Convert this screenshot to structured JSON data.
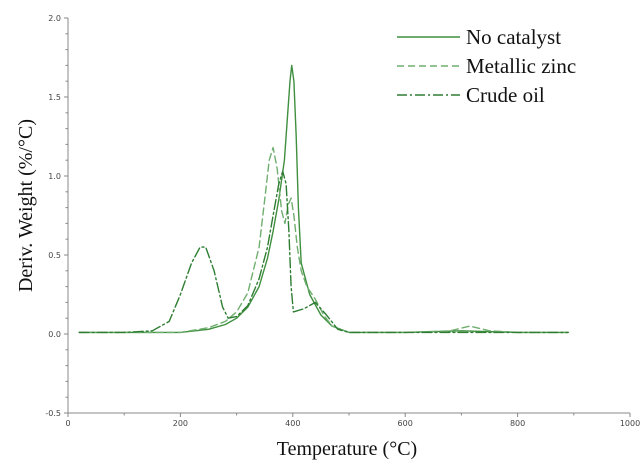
{
  "chart_data": {
    "type": "line",
    "xlabel": "Temperature (°C)",
    "ylabel": "Deriv. Weight (%/°C)",
    "xlim": [
      0,
      1000
    ],
    "ylim": [
      -0.5,
      2.0
    ],
    "xticks": [
      0,
      200,
      400,
      600,
      800,
      1000
    ],
    "yticks": [
      -0.5,
      0.0,
      0.5,
      1.0,
      1.5,
      2.0
    ],
    "xtick_labels": [
      "0",
      "200",
      "400",
      "600",
      "800",
      "1000"
    ],
    "ytick_labels": [
      "-0.5",
      "0.0",
      "0.5",
      "1.0",
      "1.5",
      "2.0"
    ],
    "grid": false,
    "legend_position": "top-right",
    "series": [
      {
        "name": "No catalyst",
        "line_style": "solid",
        "color": "#3f8f3f",
        "x": [
          20,
          100,
          200,
          250,
          280,
          300,
          320,
          340,
          355,
          365,
          375,
          385,
          390,
          395,
          398,
          402,
          406,
          410,
          415,
          430,
          450,
          470,
          500,
          600,
          700,
          800,
          890
        ],
        "y": [
          0.01,
          0.01,
          0.01,
          0.03,
          0.06,
          0.1,
          0.17,
          0.3,
          0.48,
          0.65,
          0.85,
          1.1,
          1.35,
          1.6,
          1.7,
          1.6,
          1.25,
          0.8,
          0.45,
          0.25,
          0.12,
          0.05,
          0.01,
          0.01,
          0.02,
          0.01,
          0.01
        ]
      },
      {
        "name": "Metallic zinc",
        "line_style": "dashed",
        "color": "#6fae6f",
        "x": [
          20,
          100,
          200,
          250,
          280,
          300,
          320,
          340,
          350,
          358,
          365,
          372,
          380,
          386,
          392,
          397,
          402,
          408,
          415,
          425,
          440,
          455,
          470,
          500,
          600,
          680,
          715,
          750,
          800,
          890
        ],
        "y": [
          0.01,
          0.01,
          0.01,
          0.04,
          0.08,
          0.14,
          0.26,
          0.55,
          0.85,
          1.1,
          1.18,
          1.05,
          0.78,
          0.7,
          0.82,
          0.86,
          0.75,
          0.55,
          0.4,
          0.3,
          0.22,
          0.12,
          0.05,
          0.01,
          0.01,
          0.02,
          0.05,
          0.02,
          0.01,
          0.01
        ]
      },
      {
        "name": "Crude oil",
        "line_style": "dashdot",
        "color": "#2e7d32",
        "x": [
          20,
          100,
          150,
          180,
          200,
          220,
          235,
          245,
          260,
          275,
          285,
          300,
          320,
          340,
          355,
          365,
          375,
          382,
          388,
          393,
          397,
          401,
          420,
          440,
          460,
          480,
          500,
          600,
          700,
          800,
          890
        ],
        "y": [
          0.01,
          0.01,
          0.02,
          0.08,
          0.25,
          0.45,
          0.55,
          0.55,
          0.4,
          0.17,
          0.1,
          0.11,
          0.18,
          0.35,
          0.55,
          0.75,
          0.95,
          1.03,
          0.95,
          0.65,
          0.3,
          0.14,
          0.16,
          0.2,
          0.12,
          0.03,
          0.01,
          0.01,
          0.01,
          0.01,
          0.01
        ]
      }
    ]
  }
}
